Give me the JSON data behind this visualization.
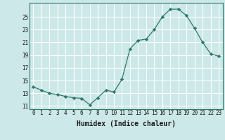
{
  "x": [
    0,
    1,
    2,
    3,
    4,
    5,
    6,
    7,
    8,
    9,
    10,
    11,
    12,
    13,
    14,
    15,
    16,
    17,
    18,
    19,
    20,
    21,
    22,
    23
  ],
  "y": [
    14.0,
    13.5,
    13.0,
    12.8,
    12.5,
    12.3,
    12.2,
    11.2,
    12.3,
    13.5,
    13.2,
    15.2,
    20.0,
    21.3,
    21.5,
    23.0,
    25.0,
    26.2,
    26.2,
    25.2,
    23.2,
    21.0,
    19.2,
    18.8
  ],
  "xlabel": "Humidex (Indice chaleur)",
  "line_color": "#2d7a6a",
  "marker": "D",
  "marker_size": 2.2,
  "bg_color": "#cce8e8",
  "grid_color": "#ffffff",
  "ylim": [
    10.5,
    27.2
  ],
  "xlim": [
    -0.5,
    23.5
  ],
  "yticks": [
    11,
    13,
    15,
    17,
    19,
    21,
    23,
    25
  ],
  "xticks": [
    0,
    1,
    2,
    3,
    4,
    5,
    6,
    7,
    8,
    9,
    10,
    11,
    12,
    13,
    14,
    15,
    16,
    17,
    18,
    19,
    20,
    21,
    22,
    23
  ],
  "tick_fontsize": 5.5,
  "xlabel_fontsize": 7.0,
  "linewidth": 0.9
}
